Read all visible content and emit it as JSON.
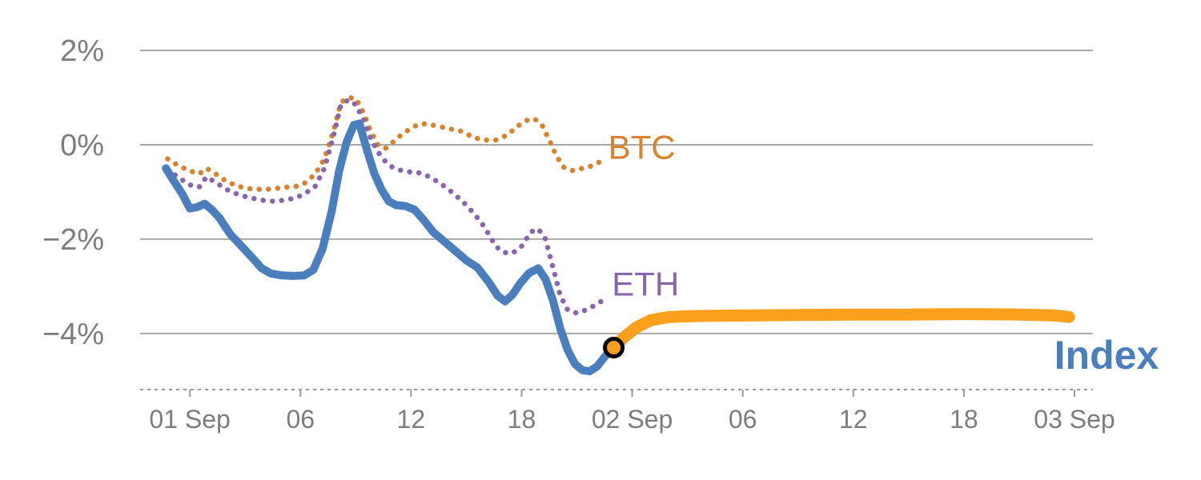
{
  "chart_data": {
    "type": "line",
    "title": "",
    "xlabel": "",
    "ylabel": "",
    "style": {
      "background": "#ffffff",
      "grid_color": "#a8a8a8",
      "axis_color": "#999999",
      "tick_label_color": "#7d7d7d"
    },
    "x_axis": {
      "unit": "hours from 01 Sep 00:00",
      "range": [
        -2.7,
        49.0
      ],
      "ticks": [
        {
          "t": 0,
          "label": "01 Sep"
        },
        {
          "t": 6,
          "label": "06"
        },
        {
          "t": 12,
          "label": "12"
        },
        {
          "t": 18,
          "label": "18"
        },
        {
          "t": 24,
          "label": "02 Sep"
        },
        {
          "t": 30,
          "label": "06"
        },
        {
          "t": 36,
          "label": "12"
        },
        {
          "t": 42,
          "label": "18"
        },
        {
          "t": 48,
          "label": "03 Sep"
        }
      ]
    },
    "y_axis": {
      "unit": "percent change",
      "range": [
        -5.19,
        2.39
      ],
      "ticks": [
        {
          "v": 2,
          "label": "2%"
        },
        {
          "v": 0,
          "label": "0%"
        },
        {
          "v": -2,
          "label": "−2%"
        },
        {
          "v": -4,
          "label": "−4%"
        }
      ]
    },
    "series": [
      {
        "name": "BTC",
        "slug": "btc",
        "color": "#d9822b",
        "line_style": "dotted",
        "stroke_width": 6.5,
        "label": {
          "text": "BTC",
          "t": 22.7,
          "v": -0.3,
          "size": 42,
          "bold": false
        },
        "points": [
          [
            -1.2,
            -0.3
          ],
          [
            -0.6,
            -0.45
          ],
          [
            0.0,
            -0.55
          ],
          [
            0.5,
            -0.62
          ],
          [
            0.9,
            -0.5
          ],
          [
            1.4,
            -0.62
          ],
          [
            2.0,
            -0.78
          ],
          [
            2.6,
            -0.88
          ],
          [
            3.2,
            -0.93
          ],
          [
            4.0,
            -0.95
          ],
          [
            4.6,
            -0.93
          ],
          [
            5.2,
            -0.9
          ],
          [
            5.8,
            -0.88
          ],
          [
            6.3,
            -0.8
          ],
          [
            6.8,
            -0.62
          ],
          [
            7.3,
            -0.3
          ],
          [
            7.8,
            0.3
          ],
          [
            8.2,
            0.9
          ],
          [
            8.6,
            1.0
          ],
          [
            9.0,
            0.98
          ],
          [
            9.4,
            0.7
          ],
          [
            9.8,
            0.3
          ],
          [
            10.2,
            0.0
          ],
          [
            10.6,
            -0.08
          ],
          [
            11.0,
            0.05
          ],
          [
            11.5,
            0.22
          ],
          [
            12.0,
            0.35
          ],
          [
            12.5,
            0.45
          ],
          [
            13.0,
            0.43
          ],
          [
            13.6,
            0.38
          ],
          [
            14.2,
            0.33
          ],
          [
            14.8,
            0.28
          ],
          [
            15.4,
            0.15
          ],
          [
            16.0,
            0.1
          ],
          [
            16.6,
            0.1
          ],
          [
            17.2,
            0.2
          ],
          [
            17.8,
            0.4
          ],
          [
            18.3,
            0.52
          ],
          [
            18.7,
            0.55
          ],
          [
            19.1,
            0.42
          ],
          [
            19.5,
            0.1
          ],
          [
            19.9,
            -0.25
          ],
          [
            20.3,
            -0.48
          ],
          [
            20.8,
            -0.55
          ],
          [
            21.3,
            -0.5
          ],
          [
            21.8,
            -0.45
          ],
          [
            22.3,
            -0.35
          ]
        ]
      },
      {
        "name": "ETH",
        "slug": "eth",
        "color": "#8866ae",
        "line_style": "dotted",
        "stroke_width": 6.5,
        "label": {
          "text": "ETH",
          "t": 22.9,
          "v": -3.2,
          "size": 42,
          "bold": false
        },
        "points": [
          [
            -1.2,
            -0.52
          ],
          [
            -0.6,
            -0.7
          ],
          [
            0.0,
            -0.85
          ],
          [
            0.5,
            -0.9
          ],
          [
            0.9,
            -0.68
          ],
          [
            1.4,
            -0.8
          ],
          [
            2.0,
            -0.95
          ],
          [
            2.6,
            -1.05
          ],
          [
            3.2,
            -1.12
          ],
          [
            4.0,
            -1.18
          ],
          [
            4.6,
            -1.2
          ],
          [
            5.2,
            -1.17
          ],
          [
            5.8,
            -1.12
          ],
          [
            6.3,
            -1.02
          ],
          [
            6.8,
            -0.88
          ],
          [
            7.3,
            -0.5
          ],
          [
            7.8,
            0.2
          ],
          [
            8.2,
            0.85
          ],
          [
            8.6,
            0.95
          ],
          [
            9.0,
            0.85
          ],
          [
            9.4,
            0.55
          ],
          [
            9.8,
            0.15
          ],
          [
            10.2,
            -0.15
          ],
          [
            10.6,
            -0.35
          ],
          [
            11.0,
            -0.48
          ],
          [
            11.5,
            -0.55
          ],
          [
            12.0,
            -0.58
          ],
          [
            12.5,
            -0.6
          ],
          [
            13.0,
            -0.68
          ],
          [
            13.6,
            -0.82
          ],
          [
            14.2,
            -1.0
          ],
          [
            14.8,
            -1.2
          ],
          [
            15.4,
            -1.45
          ],
          [
            16.0,
            -1.75
          ],
          [
            16.6,
            -2.15
          ],
          [
            17.0,
            -2.28
          ],
          [
            17.5,
            -2.3
          ],
          [
            18.0,
            -2.15
          ],
          [
            18.5,
            -1.85
          ],
          [
            18.9,
            -1.78
          ],
          [
            19.3,
            -2.0
          ],
          [
            19.7,
            -2.6
          ],
          [
            20.1,
            -3.2
          ],
          [
            20.5,
            -3.5
          ],
          [
            21.0,
            -3.57
          ],
          [
            21.5,
            -3.5
          ],
          [
            22.0,
            -3.4
          ],
          [
            22.4,
            -3.3
          ]
        ]
      },
      {
        "name": "Index forecast",
        "slug": "index-forecast",
        "color": "#fba01d",
        "line_style": "solid",
        "stroke_width": 15,
        "points": [
          [
            23.0,
            -4.3
          ],
          [
            23.5,
            -4.1
          ],
          [
            24.2,
            -3.88
          ],
          [
            25.0,
            -3.72
          ],
          [
            26.0,
            -3.65
          ],
          [
            27.5,
            -3.63
          ],
          [
            30.0,
            -3.62
          ],
          [
            33.0,
            -3.61
          ],
          [
            36.0,
            -3.6
          ],
          [
            39.0,
            -3.6
          ],
          [
            42.0,
            -3.59
          ],
          [
            45.0,
            -3.6
          ],
          [
            47.0,
            -3.62
          ],
          [
            47.7,
            -3.65
          ]
        ]
      },
      {
        "name": "Index",
        "slug": "index",
        "color": "#4a7ebd",
        "line_style": "solid",
        "stroke_width": 10,
        "label": {
          "text": "Index",
          "t": 46.9,
          "v": -4.75,
          "size": 50,
          "bold": true
        },
        "points": [
          [
            -1.3,
            -0.5
          ],
          [
            -0.9,
            -0.75
          ],
          [
            -0.4,
            -1.05
          ],
          [
            0.0,
            -1.35
          ],
          [
            0.4,
            -1.32
          ],
          [
            0.8,
            -1.25
          ],
          [
            1.2,
            -1.38
          ],
          [
            1.6,
            -1.55
          ],
          [
            2.2,
            -1.9
          ],
          [
            2.8,
            -2.15
          ],
          [
            3.4,
            -2.4
          ],
          [
            3.9,
            -2.62
          ],
          [
            4.4,
            -2.73
          ],
          [
            5.0,
            -2.77
          ],
          [
            5.6,
            -2.78
          ],
          [
            6.2,
            -2.77
          ],
          [
            6.7,
            -2.65
          ],
          [
            7.2,
            -2.2
          ],
          [
            7.7,
            -1.4
          ],
          [
            8.1,
            -0.55
          ],
          [
            8.5,
            0.05
          ],
          [
            8.9,
            0.42
          ],
          [
            9.2,
            0.45
          ],
          [
            9.6,
            -0.1
          ],
          [
            10.0,
            -0.6
          ],
          [
            10.4,
            -0.95
          ],
          [
            10.8,
            -1.2
          ],
          [
            11.2,
            -1.28
          ],
          [
            11.7,
            -1.3
          ],
          [
            12.2,
            -1.38
          ],
          [
            12.7,
            -1.6
          ],
          [
            13.2,
            -1.85
          ],
          [
            13.8,
            -2.05
          ],
          [
            14.4,
            -2.25
          ],
          [
            15.0,
            -2.45
          ],
          [
            15.6,
            -2.6
          ],
          [
            16.2,
            -2.9
          ],
          [
            16.7,
            -3.2
          ],
          [
            17.1,
            -3.32
          ],
          [
            17.5,
            -3.18
          ],
          [
            17.9,
            -2.95
          ],
          [
            18.4,
            -2.72
          ],
          [
            18.9,
            -2.62
          ],
          [
            19.3,
            -2.85
          ],
          [
            19.7,
            -3.3
          ],
          [
            20.1,
            -3.9
          ],
          [
            20.5,
            -4.35
          ],
          [
            20.9,
            -4.65
          ],
          [
            21.3,
            -4.78
          ],
          [
            21.7,
            -4.8
          ],
          [
            22.1,
            -4.7
          ],
          [
            22.5,
            -4.5
          ],
          [
            23.0,
            -4.3
          ]
        ]
      }
    ],
    "marker": {
      "name": "current-value-marker",
      "t": 23.0,
      "v": -4.3,
      "radius": 11,
      "fill": "#fba01d",
      "stroke": "#000000"
    }
  }
}
